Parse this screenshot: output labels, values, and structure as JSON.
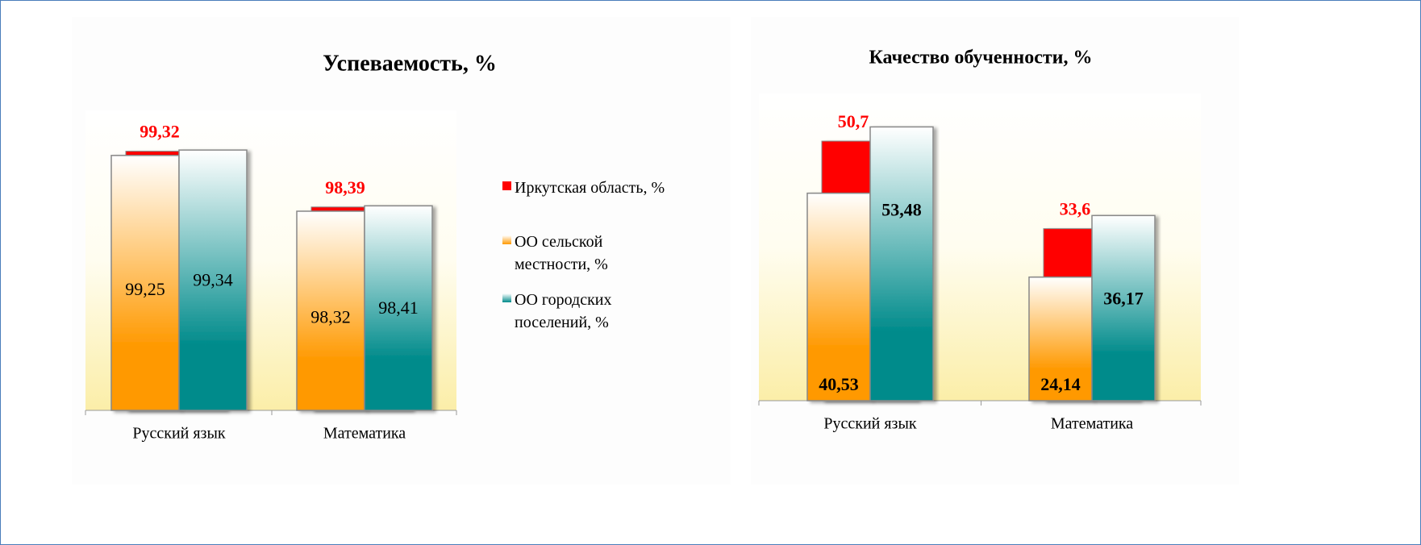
{
  "chart_data": [
    {
      "type": "bar",
      "title": "Успеваемость, %",
      "categories": [
        "Русский язык",
        "Математика"
      ],
      "series": [
        {
          "name": "Иркутская область, %",
          "color": "#ff0000",
          "values": [
            99.32,
            98.39
          ],
          "value_labels": [
            "99,32",
            "98,39"
          ]
        },
        {
          "name": "ОО сельской местности, %",
          "color": "#ff9900",
          "values": [
            99.25,
            98.32
          ],
          "value_labels": [
            "99,25",
            "98,32"
          ]
        },
        {
          "name": "ОО городских поселений, %",
          "color": "#008b8b",
          "values": [
            99.34,
            98.41
          ],
          "value_labels": [
            "99,34",
            "98,41"
          ]
        }
      ],
      "ylim": [
        95,
        100
      ]
    },
    {
      "type": "bar",
      "title": "Качество обученности, %",
      "categories": [
        "Русский язык",
        "Математика"
      ],
      "series": [
        {
          "color": "#ff0000",
          "values": [
            50.7,
            33.6
          ],
          "value_labels": [
            "50,7",
            "33,6"
          ]
        },
        {
          "color": "#ff9900",
          "values": [
            40.53,
            24.14
          ],
          "value_labels": [
            "40,53",
            "24,14"
          ]
        },
        {
          "color": "#008b8b",
          "values": [
            53.48,
            36.17
          ],
          "value_labels": [
            "53,48",
            "36,17"
          ]
        }
      ],
      "ylim": [
        0,
        60
      ]
    }
  ]
}
